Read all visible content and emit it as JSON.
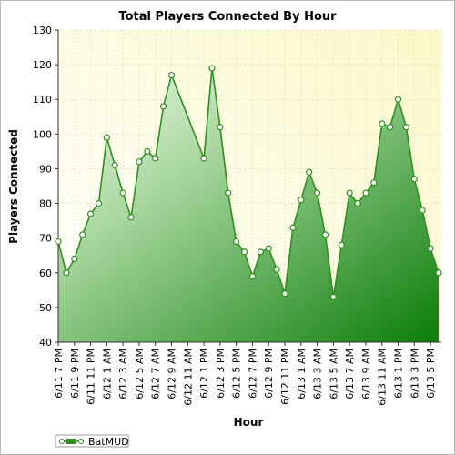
{
  "chart_data": {
    "type": "area",
    "title": "Total Players Connected By Hour",
    "xlabel": "Hour",
    "ylabel": "Players Connected",
    "ylim": [
      40,
      130
    ],
    "yticks": [
      40,
      50,
      60,
      70,
      80,
      90,
      100,
      110,
      120,
      130
    ],
    "x_tick_labels": [
      "6/11 7 PM",
      "6/11 9 PM",
      "6/11 11 PM",
      "6/12 1 AM",
      "6/12 3 AM",
      "6/12 5 AM",
      "6/12 7 AM",
      "6/12 9 AM",
      "6/12 11 AM",
      "6/12 1 PM",
      "6/12 3 PM",
      "6/12 5 PM",
      "6/12 7 PM",
      "6/12 9 PM",
      "6/12 11 PM",
      "6/13 1 AM",
      "6/13 3 AM",
      "6/13 5 AM",
      "6/13 7 AM",
      "6/13 9 AM",
      "6/13 11 AM",
      "6/13 1 PM",
      "6/13 3 PM",
      "6/13 5 PM"
    ],
    "grid": true,
    "legend_position": "bottom-left",
    "series": [
      {
        "name": "BatMUD",
        "color": "#2f8f1f",
        "points": [
          {
            "x": 0,
            "y": 69
          },
          {
            "x": 1,
            "y": 60
          },
          {
            "x": 2,
            "y": 64
          },
          {
            "x": 3,
            "y": 71
          },
          {
            "x": 4,
            "y": 77
          },
          {
            "x": 5,
            "y": 80
          },
          {
            "x": 6,
            "y": 99
          },
          {
            "x": 7,
            "y": 91
          },
          {
            "x": 8,
            "y": 83
          },
          {
            "x": 9,
            "y": 76
          },
          {
            "x": 10,
            "y": 92
          },
          {
            "x": 11,
            "y": 95
          },
          {
            "x": 12,
            "y": 93
          },
          {
            "x": 13,
            "y": 108
          },
          {
            "x": 14,
            "y": 117
          },
          {
            "x": 18,
            "y": 93
          },
          {
            "x": 19,
            "y": 119
          },
          {
            "x": 20,
            "y": 102
          },
          {
            "x": 21,
            "y": 83
          },
          {
            "x": 22,
            "y": 69
          },
          {
            "x": 23,
            "y": 66
          },
          {
            "x": 24,
            "y": 59
          },
          {
            "x": 25,
            "y": 66
          },
          {
            "x": 26,
            "y": 67
          },
          {
            "x": 27,
            "y": 61
          },
          {
            "x": 28,
            "y": 54
          },
          {
            "x": 29,
            "y": 73
          },
          {
            "x": 30,
            "y": 81
          },
          {
            "x": 31,
            "y": 89
          },
          {
            "x": 32,
            "y": 83
          },
          {
            "x": 33,
            "y": 71
          },
          {
            "x": 34,
            "y": 53
          },
          {
            "x": 35,
            "y": 68
          },
          {
            "x": 36,
            "y": 83
          },
          {
            "x": 37,
            "y": 80
          },
          {
            "x": 38,
            "y": 83
          },
          {
            "x": 39,
            "y": 86
          },
          {
            "x": 40,
            "y": 103
          },
          {
            "x": 41,
            "y": 102
          },
          {
            "x": 42,
            "y": 110
          },
          {
            "x": 43,
            "y": 102
          },
          {
            "x": 44,
            "y": 87
          },
          {
            "x": 45,
            "y": 78
          },
          {
            "x": 46,
            "y": 67
          },
          {
            "x": 47,
            "y": 60
          }
        ]
      }
    ]
  }
}
